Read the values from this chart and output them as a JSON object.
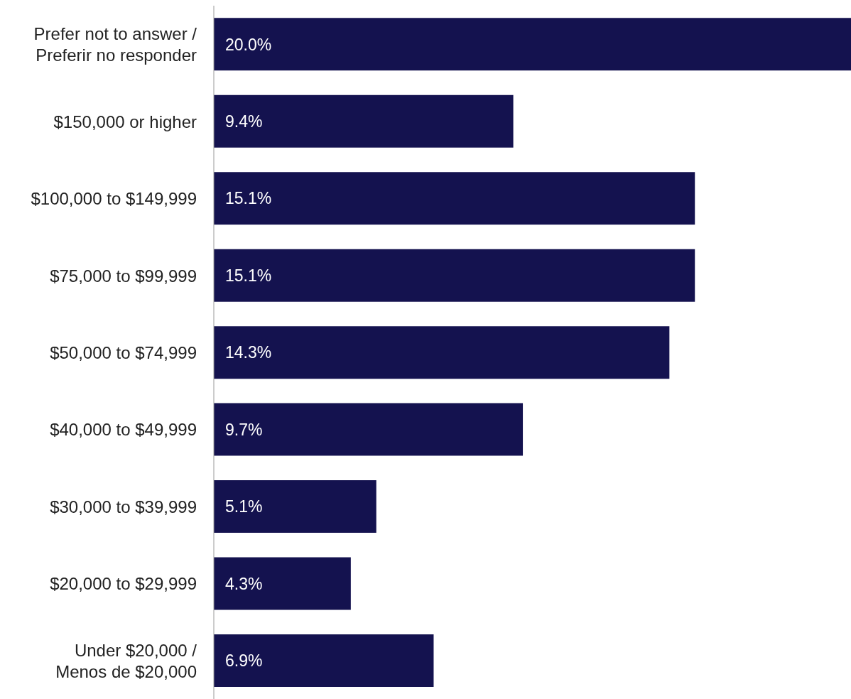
{
  "chart_data": {
    "type": "bar",
    "orientation": "horizontal",
    "categories": [
      "Prefer not to answer / Preferir no responder",
      "$150,000 or higher",
      "$100,000 to $149,999",
      "$75,000 to $99,999",
      "$50,000 to $74,999",
      "$40,000 to $49,999",
      "$30,000 to $39,999",
      "$20,000 to $29,999",
      "Under $20,000 / Menos de $20,000"
    ],
    "values": [
      20.0,
      9.4,
      15.1,
      15.1,
      14.3,
      9.7,
      5.1,
      4.3,
      6.9
    ],
    "value_labels": [
      "20.0%",
      "9.4%",
      "15.1%",
      "15.1%",
      "14.3%",
      "9.7%",
      "5.1%",
      "4.3%",
      "6.9%"
    ],
    "color": "#14124f"
  }
}
